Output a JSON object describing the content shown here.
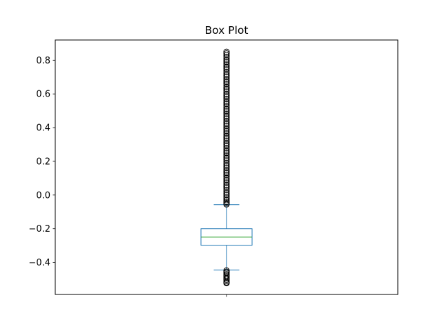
{
  "chart_data": {
    "type": "box",
    "title": "Box Plot",
    "xlabel": "",
    "ylabel": "",
    "ylim": [
      -0.59,
      0.92
    ],
    "yticks": [
      -0.4,
      -0.2,
      0.0,
      0.2,
      0.4,
      0.6,
      0.8
    ],
    "ytick_labels": [
      "−0.4",
      "−0.2",
      "0.0",
      "0.2",
      "0.4",
      "0.6",
      "0.8"
    ],
    "x_tick_labels": [
      ""
    ],
    "grid": false,
    "box": {
      "whisker_low": -0.445,
      "q1": -0.298,
      "median": -0.25,
      "q3": -0.2,
      "whisker_high": -0.057
    },
    "outliers_high": [
      -0.055,
      -0.048,
      -0.04,
      -0.03,
      -0.02,
      -0.01,
      0.0,
      0.01,
      0.02,
      0.03,
      0.04,
      0.05,
      0.06,
      0.07,
      0.08,
      0.09,
      0.1,
      0.11,
      0.12,
      0.13,
      0.14,
      0.15,
      0.16,
      0.17,
      0.18,
      0.19,
      0.2,
      0.21,
      0.22,
      0.23,
      0.24,
      0.25,
      0.26,
      0.27,
      0.28,
      0.29,
      0.3,
      0.31,
      0.32,
      0.33,
      0.34,
      0.35,
      0.36,
      0.37,
      0.38,
      0.39,
      0.4,
      0.41,
      0.42,
      0.43,
      0.44,
      0.45,
      0.46,
      0.47,
      0.48,
      0.49,
      0.5,
      0.51,
      0.52,
      0.53,
      0.54,
      0.55,
      0.56,
      0.57,
      0.58,
      0.59,
      0.6,
      0.61,
      0.62,
      0.63,
      0.64,
      0.65,
      0.66,
      0.67,
      0.68,
      0.69,
      0.7,
      0.71,
      0.72,
      0.73,
      0.74,
      0.75,
      0.76,
      0.77,
      0.78,
      0.79,
      0.8,
      0.81,
      0.82,
      0.83,
      0.84,
      0.85
    ],
    "outliers_low": [
      -0.448,
      -0.455,
      -0.462,
      -0.47,
      -0.478,
      -0.486,
      -0.494,
      -0.502,
      -0.51,
      -0.518,
      -0.523
    ],
    "colors": {
      "box": "#1f77b4",
      "median": "#2ca02c",
      "outlier_edge": "#000000"
    }
  }
}
